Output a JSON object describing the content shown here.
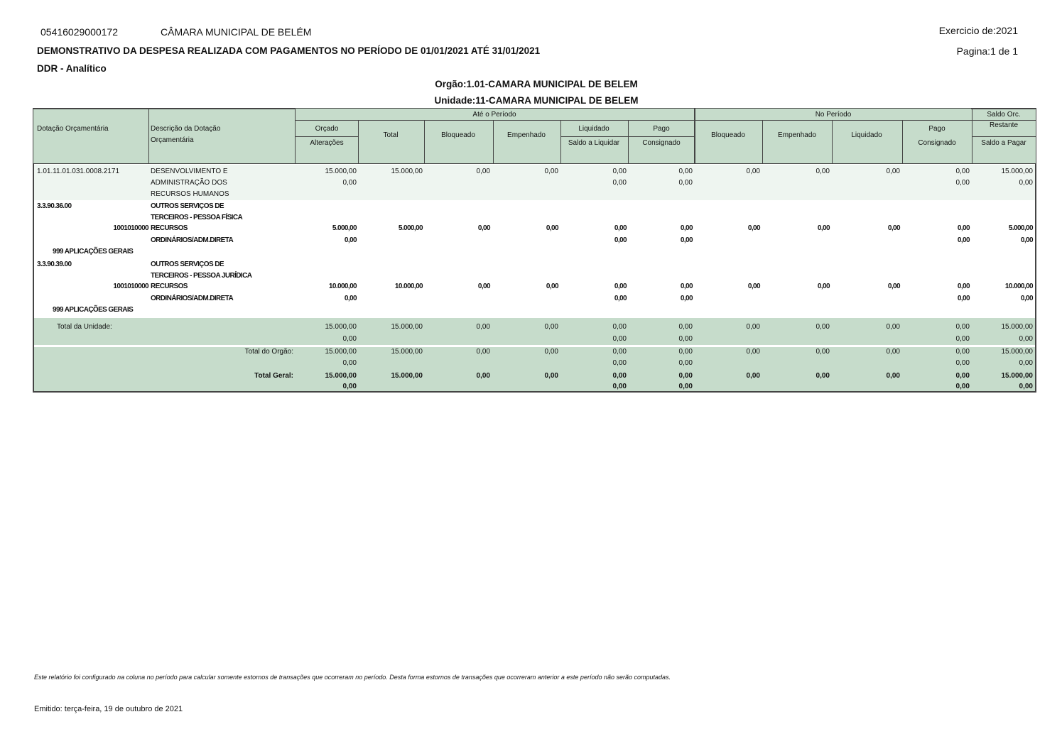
{
  "header": {
    "cnpj": "05416029000172",
    "entity": "CÂMARA MUNICIPAL DE BELÉM",
    "exercise": "Exercicio de:2021",
    "title": "DEMONSTRATIVO DA DESPESA REALIZADA COM PAGAMENTOS NO PERÍODO DE 01/01/2021 ATÉ 31/01/2021",
    "page": "Pagina:1 de 1",
    "subtitle": "DDR - Analítico",
    "orgao": "Orgão:1.01-CAMARA MUNICIPAL DE BELEM",
    "unidade": "Unidade:11-CAMARA MUNICIPAL DE BELEM"
  },
  "columns": {
    "dotacao": "Dotação Orçamentária",
    "descricao": [
      "Descrição da Dotação",
      "Orçamentária"
    ],
    "ate_periodo": "Até o Período",
    "no_periodo": "No Período",
    "orcado": "Orçado",
    "alteracoes": "Alterações",
    "total": "Total",
    "bloqueado": "Bloqueado",
    "empenhado": "Empenhado",
    "liquidado": "Liquidado",
    "saldo_liquidar": "Saldo a Liquidar",
    "pago": "Pago",
    "consignado": "Consignado",
    "np_bloqueado": "Bloqueado",
    "np_empenhado": "Empenhado",
    "np_liquidado": "Liquidado",
    "np_pago": "Pago",
    "np_consignado": "Consignado",
    "saldo_orc": [
      "Saldo Orc.",
      "Restante"
    ],
    "saldo_pagar": "Saldo a Pagar"
  },
  "rows": [
    {
      "code": "1.01.11.01.031.0008.2171",
      "desc": [
        "DESENVOLVIMENTO E",
        "ADMINISTRAÇÃO DOS",
        "RECURSOS HUMANOS"
      ],
      "top": [
        "15.000,00",
        "15.000,00",
        "0,00",
        "0,00",
        "0,00",
        "0,00",
        "0,00",
        "0,00",
        "0,00",
        "0,00",
        "15.000,00"
      ],
      "bottom": [
        "0,00",
        "0,00",
        "0,00",
        "0,00",
        "0,00"
      ]
    },
    {
      "code": "3.3.90.36.00",
      "desc": [
        "OUTROS SERVIÇOS DE",
        "TERCEIROS - PESSOA FÍSICA"
      ],
      "fonte": "1001010000",
      "fonte_desc": [
        "RECURSOS",
        "ORDINÁRIOS/ADM.DIRETA"
      ],
      "aplicacao": "999 APLICAÇÕES GERAIS",
      "top": [
        "5.000,00",
        "5.000,00",
        "0,00",
        "0,00",
        "0,00",
        "0,00",
        "0,00",
        "0,00",
        "0,00",
        "0,00",
        "5.000,00"
      ],
      "bottom": [
        "0,00",
        "0,00",
        "0,00",
        "0,00",
        "0,00"
      ]
    },
    {
      "code": "3.3.90.39.00",
      "desc": [
        "OUTROS SERVIÇOS DE",
        "TERCEIROS - PESSOA JURÍDICA"
      ],
      "fonte": "1001010000",
      "fonte_desc": [
        "RECURSOS",
        "ORDINÁRIOS/ADM.DIRETA"
      ],
      "aplicacao": "999 APLICAÇÕES GERAIS",
      "top": [
        "10.000,00",
        "10.000,00",
        "0,00",
        "0,00",
        "0,00",
        "0,00",
        "0,00",
        "0,00",
        "0,00",
        "0,00",
        "10.000,00"
      ],
      "bottom": [
        "0,00",
        "0,00",
        "0,00",
        "0,00",
        "0,00"
      ]
    }
  ],
  "totals": [
    {
      "label": "Total da Unidade:",
      "top": [
        "15.000,00",
        "15.000,00",
        "0,00",
        "0,00",
        "0,00",
        "0,00",
        "0,00",
        "0,00",
        "0,00",
        "0,00",
        "15.000,00"
      ],
      "bottom": [
        "0,00",
        "0,00",
        "0,00",
        "0,00",
        "0,00"
      ]
    },
    {
      "label": "Total do Orgão:",
      "top": [
        "15.000,00",
        "15.000,00",
        "0,00",
        "0,00",
        "0,00",
        "0,00",
        "0,00",
        "0,00",
        "0,00",
        "0,00",
        "15.000,00"
      ],
      "bottom": [
        "0,00",
        "0,00",
        "0,00",
        "0,00",
        "0,00"
      ]
    },
    {
      "label": "Total Geral:",
      "top": [
        "15.000,00",
        "15.000,00",
        "0,00",
        "0,00",
        "0,00",
        "0,00",
        "0,00",
        "0,00",
        "0,00",
        "0,00",
        "15.000,00"
      ],
      "bottom": [
        "0,00",
        "0,00",
        "0,00",
        "0,00",
        "0,00"
      ]
    }
  ],
  "footer": {
    "note": "Este relatório foi configurado na coluna no período para calcular somente estornos de transações que ocorreram no período. Desta forma estornos de transações que ocorreram anterior a este período não serão computadas.",
    "emitted": "Emitido: terça-feira, 19 de outubro de 2021"
  }
}
